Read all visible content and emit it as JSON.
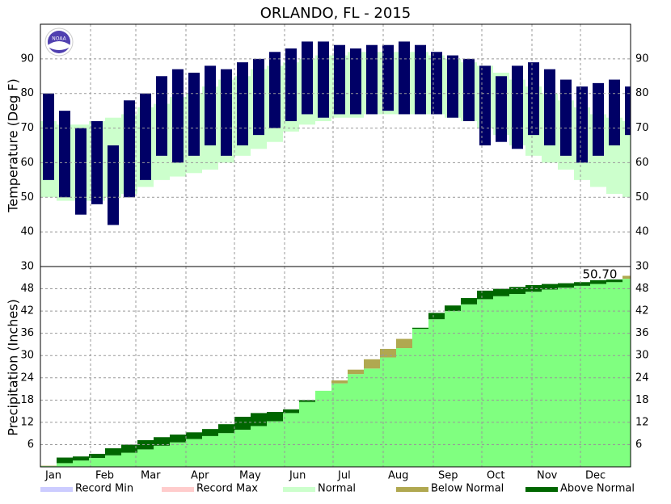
{
  "chart_data": [
    {
      "type": "range_bar",
      "title": "ORLANDO, FL - 2015",
      "ylabel": "Temperature (Deg F)",
      "logo_text": "NOAA",
      "x": [
        5,
        15,
        25,
        35,
        45,
        55,
        65,
        75,
        85,
        95,
        105,
        115,
        125,
        135,
        145,
        155,
        165,
        175,
        185,
        195,
        205,
        215,
        225,
        235,
        245,
        255,
        265,
        275,
        285,
        295,
        305,
        315,
        325,
        335,
        345,
        355,
        365
      ],
      "xlim": [
        0,
        365
      ],
      "ylim": [
        30,
        100
      ],
      "yticks": [
        30,
        40,
        50,
        60,
        70,
        80,
        90
      ],
      "grid": true,
      "color": "#000066",
      "high": [
        80,
        75,
        70,
        72,
        65,
        78,
        80,
        85,
        87,
        86,
        88,
        87,
        89,
        90,
        92,
        93,
        95,
        95,
        94,
        93,
        94,
        94,
        95,
        94,
        92,
        91,
        90,
        88,
        85,
        88,
        89,
        87,
        84,
        82,
        83,
        84,
        82
      ],
      "low": [
        55,
        50,
        45,
        48,
        42,
        50,
        55,
        62,
        60,
        62,
        65,
        62,
        65,
        68,
        70,
        72,
        74,
        73,
        74,
        74,
        74,
        75,
        74,
        74,
        74,
        73,
        72,
        65,
        66,
        64,
        68,
        65,
        62,
        60,
        62,
        65,
        68
      ],
      "normal_high": [
        72,
        71,
        71,
        72,
        73,
        74,
        76,
        77,
        79,
        80,
        82,
        84,
        85,
        87,
        88,
        89,
        90,
        91,
        91,
        92,
        92,
        92,
        92,
        92,
        91,
        90,
        89,
        88,
        86,
        84,
        82,
        80,
        78,
        76,
        74,
        73,
        72
      ],
      "normal_low": [
        50,
        49,
        49,
        49,
        50,
        51,
        53,
        55,
        56,
        57,
        58,
        60,
        62,
        64,
        66,
        69,
        71,
        72,
        73,
        73,
        74,
        74,
        74,
        74,
        74,
        73,
        72,
        70,
        68,
        65,
        62,
        60,
        58,
        55,
        53,
        51,
        50
      ]
    },
    {
      "type": "cumulative_area",
      "ylabel": "Precipitation (Inches)",
      "annotation": "50.70",
      "x": [
        5,
        15,
        25,
        35,
        45,
        55,
        65,
        75,
        85,
        95,
        105,
        115,
        125,
        135,
        145,
        155,
        165,
        175,
        185,
        195,
        205,
        215,
        225,
        235,
        245,
        255,
        265,
        275,
        285,
        295,
        305,
        315,
        325,
        335,
        345,
        355,
        365
      ],
      "xlim": [
        0,
        365
      ],
      "ylim": [
        0,
        54
      ],
      "yticks": [
        6,
        12,
        18,
        24,
        30,
        36,
        42,
        48
      ],
      "grid": true,
      "xticks": [
        {
          "value": 0,
          "label": "Jan"
        },
        {
          "value": 31,
          "label": "Feb"
        },
        {
          "value": 59,
          "label": "Mar"
        },
        {
          "value": 90,
          "label": "Apr"
        },
        {
          "value": 120,
          "label": "May"
        },
        {
          "value": 151,
          "label": "Jun"
        },
        {
          "value": 181,
          "label": "Jul"
        },
        {
          "value": 212,
          "label": "Aug"
        },
        {
          "value": 243,
          "label": "Sep"
        },
        {
          "value": 273,
          "label": "Oct"
        },
        {
          "value": 304,
          "label": "Nov"
        },
        {
          "value": 334,
          "label": "Dec"
        }
      ],
      "observed": [
        0.2,
        2.5,
        2.8,
        3.5,
        5.0,
        6.0,
        7.2,
        8.0,
        8.7,
        9.3,
        10.2,
        11.5,
        13.5,
        14.5,
        14.8,
        15.5,
        18.0,
        20.5,
        22.5,
        25.0,
        26.5,
        29.5,
        32.0,
        37.5,
        41.5,
        43.5,
        45.5,
        47.5,
        48.0,
        48.5,
        49.0,
        49.3,
        49.5,
        49.8,
        50.3,
        50.5,
        50.7
      ],
      "normal": [
        0.3,
        1.0,
        1.7,
        2.4,
        3.1,
        3.8,
        4.7,
        5.7,
        6.6,
        7.5,
        8.3,
        9.1,
        10.0,
        11.0,
        12.3,
        14.5,
        17.5,
        20.5,
        23.3,
        26.2,
        29.0,
        31.8,
        34.5,
        37.2,
        39.8,
        42.0,
        43.8,
        45.2,
        46.0,
        46.6,
        47.2,
        47.8,
        48.3,
        48.8,
        49.3,
        49.8,
        51.5
      ],
      "legend": [
        {
          "name": "Record Min",
          "color": "#ccccff"
        },
        {
          "name": "Record Max",
          "color": "#ffcccc"
        },
        {
          "name": "Normal",
          "color": "#ccffcc"
        },
        {
          "name": "Below Normal",
          "color": "#b0a850"
        },
        {
          "name": "Above Normal",
          "color": "#006600"
        }
      ],
      "fill_color": "#80ff80"
    }
  ]
}
